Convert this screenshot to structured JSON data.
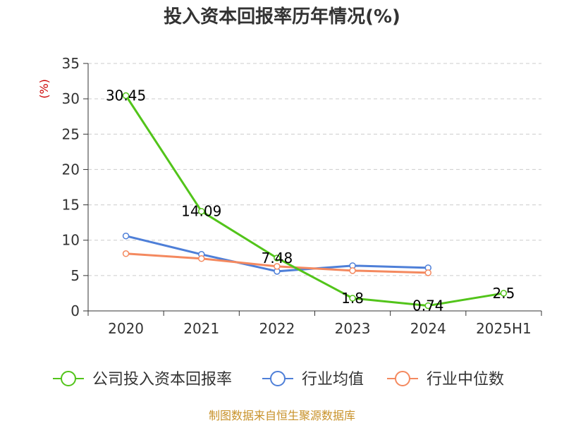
{
  "chart_data": {
    "type": "line",
    "title": "投入资本回报率历年情况(%)",
    "ylabel": "(%)",
    "xlabel": "",
    "categories": [
      "2020",
      "2021",
      "2022",
      "2023",
      "2024",
      "2025H1"
    ],
    "ylim": [
      0,
      35
    ],
    "yticks": [
      0,
      5,
      10,
      15,
      20,
      25,
      30,
      35
    ],
    "grid": true,
    "legend_position": "bottom",
    "series": [
      {
        "name": "公司投入资本回报率",
        "color": "#52c41a",
        "values": [
          30.45,
          14.09,
          7.48,
          1.8,
          0.74,
          2.5
        ],
        "labels": [
          "30.45",
          "14.09",
          "7.48",
          "1.8",
          "0.74",
          "2.5"
        ]
      },
      {
        "name": "行业均值",
        "color": "#4e7fd8",
        "values": [
          10.6,
          8.0,
          5.6,
          6.4,
          6.1,
          null
        ]
      },
      {
        "name": "行业中位数",
        "color": "#f4895f",
        "values": [
          8.1,
          7.4,
          6.3,
          5.7,
          5.4,
          null
        ]
      }
    ],
    "source": "制图数据来自恒生聚源数据库",
    "ylabel_color": "#cc0000",
    "source_color": "#c8922a"
  }
}
